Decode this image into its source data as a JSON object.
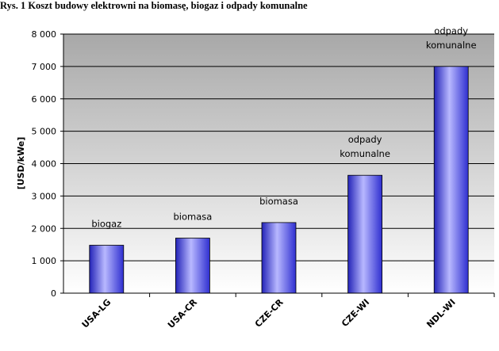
{
  "chart_data": {
    "type": "bar",
    "title": "Rys. 1 Koszt budowy elektrowni na biomasę, biogaz i odpady komunalne",
    "xlabel": "",
    "ylabel": "[USD/kWe]",
    "ylim": [
      0,
      8000
    ],
    "yticks": [
      "0",
      "1 000",
      "2 000",
      "3 000",
      "4 000",
      "5 000",
      "6 000",
      "7 000",
      "8 000"
    ],
    "categories": [
      "USA-LG",
      "USA-CR",
      "CZE-CR",
      "CZE-WI",
      "NDL-WI"
    ],
    "values": [
      1480,
      1700,
      2180,
      3640,
      7000
    ],
    "bar_labels": [
      [
        "biogaz"
      ],
      [
        "biomasa"
      ],
      [
        "biomasa"
      ],
      [
        "odpady",
        "komunalne"
      ],
      [
        "odpady",
        "komunalne"
      ]
    ],
    "grid": true,
    "colors": {
      "bar": "#6f6fff",
      "plot_bg_top": "#a8a8a8",
      "plot_bg_bottom": "#ffffff"
    }
  }
}
